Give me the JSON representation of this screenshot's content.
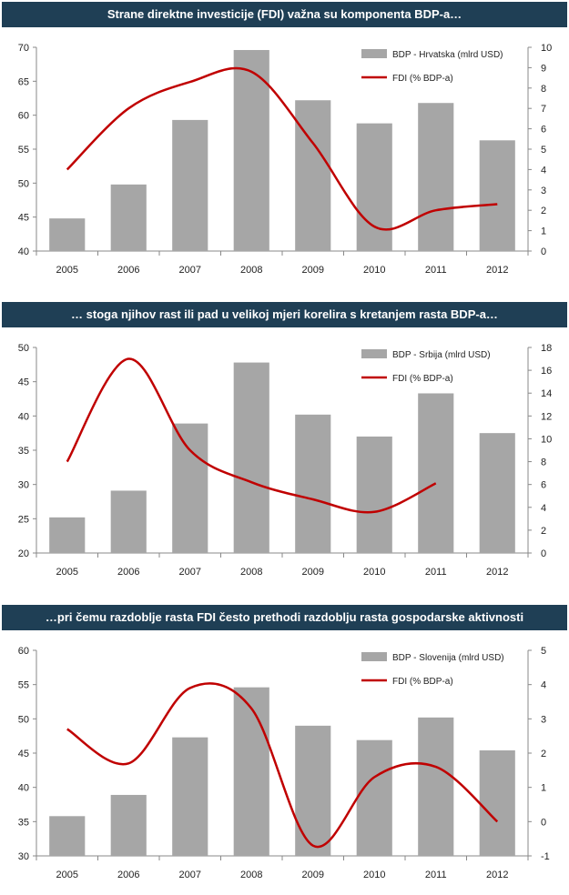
{
  "chart_data": [
    {
      "type": "bar",
      "title": "Strane direktne investicije (FDI) važna su komponenta BDP-a…",
      "categories": [
        "2005",
        "2006",
        "2007",
        "2008",
        "2009",
        "2010",
        "2011",
        "2012"
      ],
      "ylim": [
        40,
        70
      ],
      "yticks": [
        40,
        45,
        50,
        55,
        60,
        65,
        70
      ],
      "y2lim": [
        0,
        10
      ],
      "y2ticks": [
        0,
        1,
        2,
        3,
        4,
        5,
        6,
        7,
        8,
        9,
        10
      ],
      "series": [
        {
          "name": "BDP - Hrvatska (mlrd USD)",
          "type": "bar",
          "axis": "left",
          "values": [
            44.8,
            49.8,
            59.3,
            69.6,
            62.2,
            58.8,
            61.8,
            56.3
          ]
        },
        {
          "name": "FDI (% BDP-a)",
          "type": "line",
          "axis": "right",
          "values": [
            4.0,
            7.0,
            8.3,
            8.8,
            5.3,
            1.2,
            2.0,
            2.3
          ]
        }
      ],
      "legend_position": "top-right",
      "colors": {
        "bar": "#a6a6a6",
        "line": "#c00000"
      }
    },
    {
      "type": "bar",
      "title": "… stoga njihov rast ili pad u velikoj mjeri korelira s kretanjem rasta BDP-a…",
      "categories": [
        "2005",
        "2006",
        "2007",
        "2008",
        "2009",
        "2010",
        "2011",
        "2012"
      ],
      "ylim": [
        20,
        50
      ],
      "yticks": [
        20,
        25,
        30,
        35,
        40,
        45,
        50
      ],
      "y2lim": [
        0,
        18
      ],
      "y2ticks": [
        0,
        2,
        4,
        6,
        8,
        10,
        12,
        14,
        16,
        18
      ],
      "series": [
        {
          "name": "BDP - Srbija (mlrd USD)",
          "type": "bar",
          "axis": "left",
          "values": [
            25.2,
            29.1,
            38.9,
            47.8,
            40.2,
            37.0,
            43.3,
            37.5
          ]
        },
        {
          "name": "FDI (% BDP-a)",
          "type": "line",
          "axis": "right",
          "values": [
            8.0,
            17.0,
            9.0,
            6.2,
            4.7,
            3.6,
            6.1,
            null
          ]
        }
      ],
      "legend_position": "top-right",
      "colors": {
        "bar": "#a6a6a6",
        "line": "#c00000"
      }
    },
    {
      "type": "bar",
      "title": "…pri čemu razdoblje rasta FDI često prethodi razdoblju rasta gospodarske aktivnosti",
      "categories": [
        "2005",
        "2006",
        "2007",
        "2008",
        "2009",
        "2010",
        "2011",
        "2012"
      ],
      "ylim": [
        30,
        60
      ],
      "yticks": [
        30,
        35,
        40,
        45,
        50,
        55,
        60
      ],
      "y2lim": [
        -1,
        5
      ],
      "y2ticks": [
        -1,
        0,
        1,
        2,
        3,
        4,
        5
      ],
      "series": [
        {
          "name": "BDP - Slovenija (mlrd USD)",
          "type": "bar",
          "axis": "left",
          "values": [
            35.8,
            38.9,
            47.3,
            54.6,
            49.0,
            46.9,
            50.2,
            45.4
          ]
        },
        {
          "name": "FDI (% BDP-a)",
          "type": "line",
          "axis": "right",
          "values": [
            2.7,
            1.7,
            3.9,
            3.3,
            -0.7,
            1.3,
            1.6,
            0.0
          ]
        }
      ],
      "legend_position": "top-right",
      "colors": {
        "bar": "#a6a6a6",
        "line": "#c00000"
      }
    }
  ]
}
